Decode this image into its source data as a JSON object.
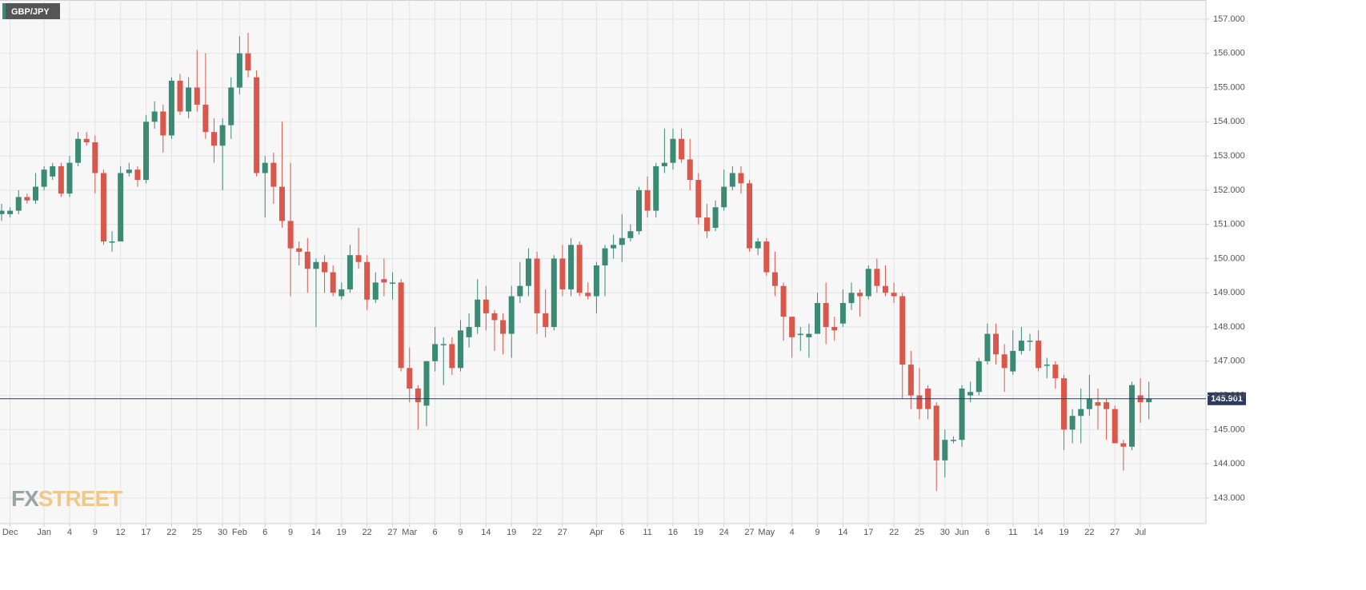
{
  "chart_data": {
    "type": "candlestick",
    "title": "GBP/JPY",
    "watermark": [
      "FX",
      "STREET"
    ],
    "up_color": "#3b8a74",
    "down_color": "#d9584b",
    "last_price": 145.901,
    "last_price_color": "#2b3a5e",
    "grid": true,
    "ylim": [
      142.25,
      157.56
    ],
    "yticks": [
      {
        "value": 143,
        "label": "143.000"
      },
      {
        "value": 144,
        "label": "144.000"
      },
      {
        "value": 145,
        "label": "145.000"
      },
      {
        "value": 146,
        "label": "146.000"
      },
      {
        "value": 147,
        "label": "147.000"
      },
      {
        "value": 148,
        "label": "148.000"
      },
      {
        "value": 149,
        "label": "149.000"
      },
      {
        "value": 150,
        "label": "150.000"
      },
      {
        "value": 151,
        "label": "151.000"
      },
      {
        "value": 152,
        "label": "152.000"
      },
      {
        "value": 153,
        "label": "153.000"
      },
      {
        "value": 154,
        "label": "154.000"
      },
      {
        "value": 155,
        "label": "155.000"
      },
      {
        "value": 156,
        "label": "156.000"
      },
      {
        "value": 157,
        "label": "157.000"
      }
    ],
    "categories": [
      null,
      "Dec",
      null,
      null,
      null,
      "Jan",
      null,
      null,
      "4",
      null,
      null,
      "9",
      null,
      null,
      "12",
      null,
      null,
      "17",
      null,
      null,
      "22",
      null,
      null,
      "25",
      null,
      null,
      "30",
      null,
      "Feb",
      null,
      null,
      "6",
      null,
      null,
      "9",
      null,
      null,
      "14",
      null,
      null,
      "19",
      null,
      null,
      "22",
      null,
      null,
      "27",
      null,
      "Mar",
      null,
      null,
      "6",
      null,
      null,
      "9",
      null,
      null,
      "14",
      null,
      null,
      "19",
      null,
      null,
      "22",
      null,
      null,
      "27",
      null,
      null,
      null,
      "Apr",
      null,
      null,
      "6",
      null,
      null,
      "11",
      null,
      null,
      "16",
      null,
      null,
      "19",
      null,
      null,
      "24",
      null,
      null,
      "27",
      null,
      "May",
      null,
      null,
      "4",
      null,
      null,
      "9",
      null,
      null,
      "14",
      null,
      null,
      "17",
      null,
      null,
      "22",
      null,
      null,
      "25",
      null,
      null,
      "30",
      null,
      "Jun",
      null,
      null,
      "6",
      null,
      null,
      "11",
      null,
      null,
      "14",
      null,
      null,
      "19",
      null,
      null,
      "22",
      null,
      null,
      "27",
      null,
      null,
      "Jul",
      null
    ],
    "open": [
      151.3,
      151.3,
      151.4,
      151.8,
      151.7,
      152.1,
      152.4,
      152.7,
      151.9,
      152.8,
      153.5,
      153.4,
      152.5,
      150.5,
      150.5,
      152.5,
      152.6,
      152.3,
      154.0,
      154.3,
      153.6,
      155.2,
      154.3,
      155.0,
      154.5,
      153.7,
      153.3,
      153.9,
      155.0,
      156.0,
      155.3,
      152.5,
      152.8,
      152.1,
      151.1,
      150.3,
      150.2,
      149.7,
      149.9,
      149.6,
      148.9,
      149.1,
      150.1,
      149.9,
      148.8,
      149.4,
      149.3,
      149.3,
      146.8,
      146.2,
      145.7,
      147.0,
      147.5,
      147.5,
      146.8,
      147.7,
      148.0,
      148.8,
      148.4,
      148.2,
      147.8,
      148.9,
      149.2,
      150.0,
      148.4,
      148.0,
      150.0,
      149.1,
      150.4,
      149.0,
      148.9,
      149.8,
      150.3,
      150.4,
      150.6,
      150.8,
      152.0,
      151.4,
      152.7,
      152.8,
      153.5,
      152.9,
      152.3,
      151.2,
      150.9,
      151.5,
      152.1,
      152.5,
      152.2,
      150.3,
      150.5,
      149.6,
      149.2,
      148.3,
      147.8,
      147.7,
      147.8,
      148.7,
      148.0,
      148.1,
      148.7,
      149.0,
      148.9,
      149.7,
      149.2,
      149.0,
      148.9,
      146.9,
      146.0,
      146.2,
      145.7,
      144.1,
      144.7,
      144.7,
      146.0,
      146.1,
      147.0,
      147.8,
      147.2,
      146.7,
      147.3,
      147.6,
      147.6,
      146.9,
      146.9,
      146.5,
      145.0,
      145.4,
      145.6,
      145.8,
      145.8,
      145.6,
      144.6,
      144.5,
      146.0,
      145.8
    ],
    "high": [
      151.6,
      151.5,
      152.0,
      151.9,
      152.5,
      152.7,
      152.8,
      152.8,
      153.0,
      153.7,
      153.7,
      153.6,
      152.6,
      150.8,
      152.7,
      152.8,
      152.7,
      154.2,
      154.6,
      154.5,
      155.3,
      155.4,
      155.3,
      156.1,
      156.0,
      154.1,
      154.1,
      155.3,
      156.5,
      156.6,
      155.5,
      153.0,
      153.1,
      154.0,
      152.8,
      150.5,
      150.6,
      150.0,
      150.1,
      149.8,
      149.3,
      150.4,
      150.9,
      150.1,
      149.6,
      150.0,
      149.6,
      149.4,
      147.4,
      146.3,
      147.0,
      148.0,
      147.7,
      147.7,
      148.2,
      148.4,
      149.4,
      149.2,
      148.5,
      148.4,
      149.2,
      149.9,
      150.3,
      150.2,
      149.1,
      150.1,
      150.4,
      150.6,
      150.5,
      149.3,
      149.9,
      150.4,
      150.7,
      151.3,
      151.0,
      152.1,
      152.4,
      152.8,
      153.8,
      153.8,
      153.8,
      153.5,
      152.5,
      151.6,
      151.7,
      152.6,
      152.7,
      152.7,
      152.3,
      150.6,
      150.6,
      150.2,
      149.3,
      148.3,
      148.0,
      148.1,
      149.0,
      149.3,
      148.3,
      149.1,
      149.3,
      149.1,
      149.8,
      150.0,
      149.8,
      149.3,
      149.0,
      147.3,
      146.8,
      146.3,
      145.8,
      145.0,
      144.8,
      146.3,
      146.4,
      147.1,
      148.1,
      148.1,
      147.5,
      147.9,
      148.0,
      147.8,
      147.9,
      147.1,
      147.0,
      146.6,
      145.6,
      146.2,
      146.6,
      146.2,
      145.9,
      145.7,
      144.7,
      146.4,
      146.5,
      146.4
    ],
    "low": [
      151.1,
      151.2,
      151.3,
      151.6,
      151.6,
      152.0,
      152.3,
      151.8,
      151.8,
      152.7,
      153.3,
      151.9,
      150.4,
      150.2,
      150.5,
      152.4,
      152.1,
      152.2,
      153.8,
      153.1,
      153.5,
      154.2,
      154.1,
      154.3,
      153.5,
      152.8,
      152.0,
      153.5,
      154.8,
      155.3,
      152.4,
      151.2,
      151.6,
      150.9,
      148.9,
      149.8,
      149.0,
      148.0,
      149.0,
      148.9,
      148.8,
      149.0,
      149.7,
      148.5,
      148.7,
      148.9,
      148.8,
      146.7,
      145.8,
      145.0,
      145.1,
      146.7,
      146.3,
      146.6,
      146.7,
      147.4,
      147.8,
      147.9,
      147.3,
      147.2,
      147.1,
      148.7,
      148.9,
      147.8,
      147.7,
      147.9,
      148.9,
      148.9,
      148.9,
      148.8,
      148.4,
      148.9,
      150.0,
      149.9,
      150.5,
      150.7,
      151.2,
      151.2,
      152.5,
      152.6,
      152.8,
      152.0,
      151.0,
      150.6,
      150.8,
      151.4,
      152.0,
      151.9,
      150.2,
      150.1,
      149.5,
      148.9,
      147.6,
      147.1,
      147.3,
      147.1,
      147.8,
      147.5,
      147.6,
      148.0,
      148.5,
      148.3,
      148.8,
      149.0,
      148.9,
      148.7,
      145.9,
      145.6,
      145.3,
      145.3,
      143.2,
      143.6,
      144.6,
      144.5,
      145.8,
      146.0,
      146.9,
      146.9,
      146.1,
      146.6,
      147.2,
      147.3,
      146.7,
      146.5,
      146.2,
      144.4,
      144.6,
      144.6,
      145.4,
      145.0,
      144.7,
      144.6,
      143.8,
      144.4,
      145.2,
      145.3
    ],
    "close": [
      151.4,
      151.4,
      151.8,
      151.7,
      152.1,
      152.6,
      152.7,
      151.9,
      152.8,
      153.5,
      153.4,
      152.5,
      150.5,
      150.5,
      152.5,
      152.6,
      152.3,
      154.0,
      154.3,
      153.6,
      155.2,
      154.3,
      155.0,
      154.5,
      153.7,
      153.3,
      153.9,
      155.0,
      156.0,
      155.5,
      152.5,
      152.8,
      152.1,
      151.1,
      150.3,
      150.2,
      149.7,
      149.9,
      149.6,
      149.0,
      149.1,
      150.1,
      149.9,
      148.8,
      149.3,
      149.3,
      149.3,
      146.8,
      146.2,
      145.8,
      147.0,
      147.5,
      147.5,
      146.8,
      147.9,
      148.0,
      148.8,
      148.4,
      148.2,
      147.8,
      148.9,
      149.2,
      150.0,
      148.4,
      148.0,
      150.0,
      149.1,
      150.4,
      149.0,
      148.9,
      149.8,
      150.3,
      150.4,
      150.6,
      150.8,
      152.0,
      151.4,
      152.7,
      152.8,
      153.5,
      152.9,
      152.3,
      151.2,
      150.8,
      151.5,
      152.1,
      152.5,
      152.2,
      150.3,
      150.5,
      149.6,
      149.2,
      148.3,
      147.7,
      147.8,
      147.8,
      148.7,
      148.0,
      147.9,
      148.7,
      149.0,
      148.9,
      149.7,
      149.2,
      149.0,
      148.9,
      146.9,
      146.0,
      145.6,
      145.6,
      144.1,
      144.7,
      144.7,
      146.2,
      146.1,
      147.0,
      147.8,
      147.2,
      146.8,
      147.3,
      147.6,
      147.6,
      146.8,
      146.9,
      146.5,
      145.0,
      145.4,
      145.6,
      145.9,
      145.7,
      145.6,
      144.6,
      144.5,
      146.3,
      145.8,
      145.9
    ]
  }
}
